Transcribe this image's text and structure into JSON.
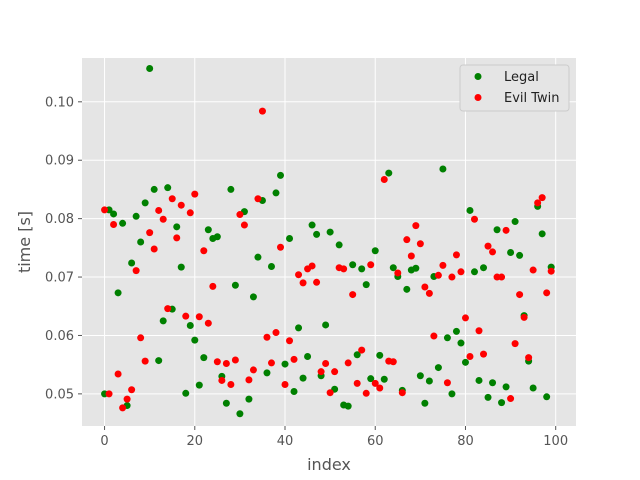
{
  "chart_data": {
    "type": "scatter",
    "xlabel": "index",
    "ylabel": "time [s]",
    "xlim": [
      -5,
      104.5
    ],
    "ylim": [
      0.0445,
      0.1075
    ],
    "x_ticks": [
      0,
      20,
      40,
      60,
      80,
      100
    ],
    "x_tick_labels": [
      "0",
      "20",
      "40",
      "60",
      "80",
      "100"
    ],
    "y_ticks": [
      0.05,
      0.06,
      0.07,
      0.08,
      0.09,
      0.1
    ],
    "y_tick_labels": [
      "0.05",
      "0.06",
      "0.07",
      "0.08",
      "0.09",
      "0.10"
    ],
    "grid": true,
    "legend_position": "top-right",
    "series": [
      {
        "name": "Legal",
        "color": "#008000",
        "x": [
          0,
          1,
          2,
          3,
          4,
          5,
          6,
          7,
          8,
          9,
          10,
          11,
          12,
          13,
          14,
          15,
          16,
          17,
          18,
          19,
          20,
          21,
          22,
          23,
          24,
          25,
          26,
          27,
          28,
          29,
          30,
          31,
          32,
          33,
          34,
          35,
          36,
          37,
          38,
          39,
          40,
          41,
          42,
          43,
          44,
          45,
          46,
          47,
          48,
          49,
          50,
          51,
          52,
          53,
          54,
          55,
          56,
          57,
          58,
          59,
          60,
          61,
          62,
          63,
          64,
          65,
          66,
          67,
          68,
          69,
          70,
          71,
          72,
          73,
          74,
          75,
          76,
          77,
          78,
          79,
          80,
          81,
          82,
          83,
          84,
          85,
          86,
          87,
          88,
          89,
          90,
          91,
          92,
          93,
          94,
          95,
          96,
          97,
          98,
          99
        ],
        "y": [
          0.05,
          0.0815,
          0.0808,
          0.0673,
          0.0792,
          0.048,
          0.0724,
          0.0804,
          0.076,
          0.0827,
          0.1057,
          0.085,
          0.0557,
          0.0625,
          0.0853,
          0.0645,
          0.0786,
          0.0717,
          0.0501,
          0.0617,
          0.0592,
          0.0515,
          0.0562,
          0.0781,
          0.0766,
          0.0769,
          0.053,
          0.0484,
          0.085,
          0.0686,
          0.0466,
          0.0812,
          0.0491,
          0.0666,
          0.0734,
          0.0831,
          0.0536,
          0.0718,
          0.0844,
          0.0874,
          0.0551,
          0.0766,
          0.0504,
          0.0613,
          0.0527,
          0.0564,
          0.0789,
          0.0773,
          0.0531,
          0.0618,
          0.0777,
          0.0508,
          0.0755,
          0.0481,
          0.0479,
          0.0721,
          0.0567,
          0.0714,
          0.0687,
          0.0526,
          0.0745,
          0.0566,
          0.0525,
          0.0878,
          0.0716,
          0.0701,
          0.0506,
          0.0679,
          0.0712,
          0.0715,
          0.0531,
          0.0484,
          0.0522,
          0.0701,
          0.0545,
          0.0885,
          0.0596,
          0.05,
          0.0607,
          0.0587,
          0.0554,
          0.0814,
          0.0709,
          0.0523,
          0.0716,
          0.0494,
          0.0519,
          0.0781,
          0.0485,
          0.0512,
          0.0742,
          0.0795,
          0.0737,
          0.0634,
          0.0556,
          0.051,
          0.0821,
          0.0774,
          0.0495,
          0.0717
        ]
      },
      {
        "name": "Evil Twin",
        "color": "#ff0000",
        "x": [
          0,
          1,
          2,
          3,
          4,
          5,
          6,
          7,
          8,
          9,
          10,
          11,
          12,
          13,
          14,
          15,
          16,
          17,
          18,
          19,
          20,
          21,
          22,
          23,
          24,
          25,
          26,
          27,
          28,
          29,
          30,
          31,
          32,
          33,
          34,
          35,
          36,
          37,
          38,
          39,
          40,
          41,
          42,
          43,
          44,
          45,
          46,
          47,
          48,
          49,
          50,
          51,
          52,
          53,
          54,
          55,
          56,
          57,
          58,
          59,
          60,
          61,
          62,
          63,
          64,
          65,
          66,
          67,
          68,
          69,
          70,
          71,
          72,
          73,
          74,
          75,
          76,
          77,
          78,
          79,
          80,
          81,
          82,
          83,
          84,
          85,
          86,
          87,
          88,
          89,
          90,
          91,
          92,
          93,
          94,
          95,
          96,
          97,
          98,
          99
        ],
        "y": [
          0.0815,
          0.05,
          0.079,
          0.0534,
          0.0476,
          0.0491,
          0.0507,
          0.0711,
          0.0596,
          0.0556,
          0.0776,
          0.0748,
          0.0814,
          0.0799,
          0.0646,
          0.0834,
          0.0767,
          0.0823,
          0.0633,
          0.081,
          0.0842,
          0.0632,
          0.0745,
          0.0621,
          0.0684,
          0.0555,
          0.0523,
          0.0552,
          0.0516,
          0.0558,
          0.0807,
          0.0789,
          0.0524,
          0.0541,
          0.0834,
          0.0984,
          0.0597,
          0.0553,
          0.0605,
          0.0751,
          0.0516,
          0.0591,
          0.0559,
          0.0704,
          0.069,
          0.0714,
          0.0719,
          0.0691,
          0.0538,
          0.0552,
          0.0502,
          0.0538,
          0.0716,
          0.0714,
          0.0553,
          0.067,
          0.0518,
          0.0575,
          0.0501,
          0.0721,
          0.0518,
          0.051,
          0.0867,
          0.0556,
          0.0555,
          0.0707,
          0.0502,
          0.0764,
          0.0736,
          0.0788,
          0.0757,
          0.0683,
          0.0672,
          0.0599,
          0.0703,
          0.072,
          0.0519,
          0.07,
          0.0738,
          0.0709,
          0.063,
          0.0564,
          0.0799,
          0.0608,
          0.0568,
          0.0753,
          0.0743,
          0.07,
          0.07,
          0.078,
          0.0492,
          0.0586,
          0.067,
          0.0631,
          0.0562,
          0.0712,
          0.0827,
          0.0836,
          0.0673,
          0.071
        ]
      }
    ]
  }
}
